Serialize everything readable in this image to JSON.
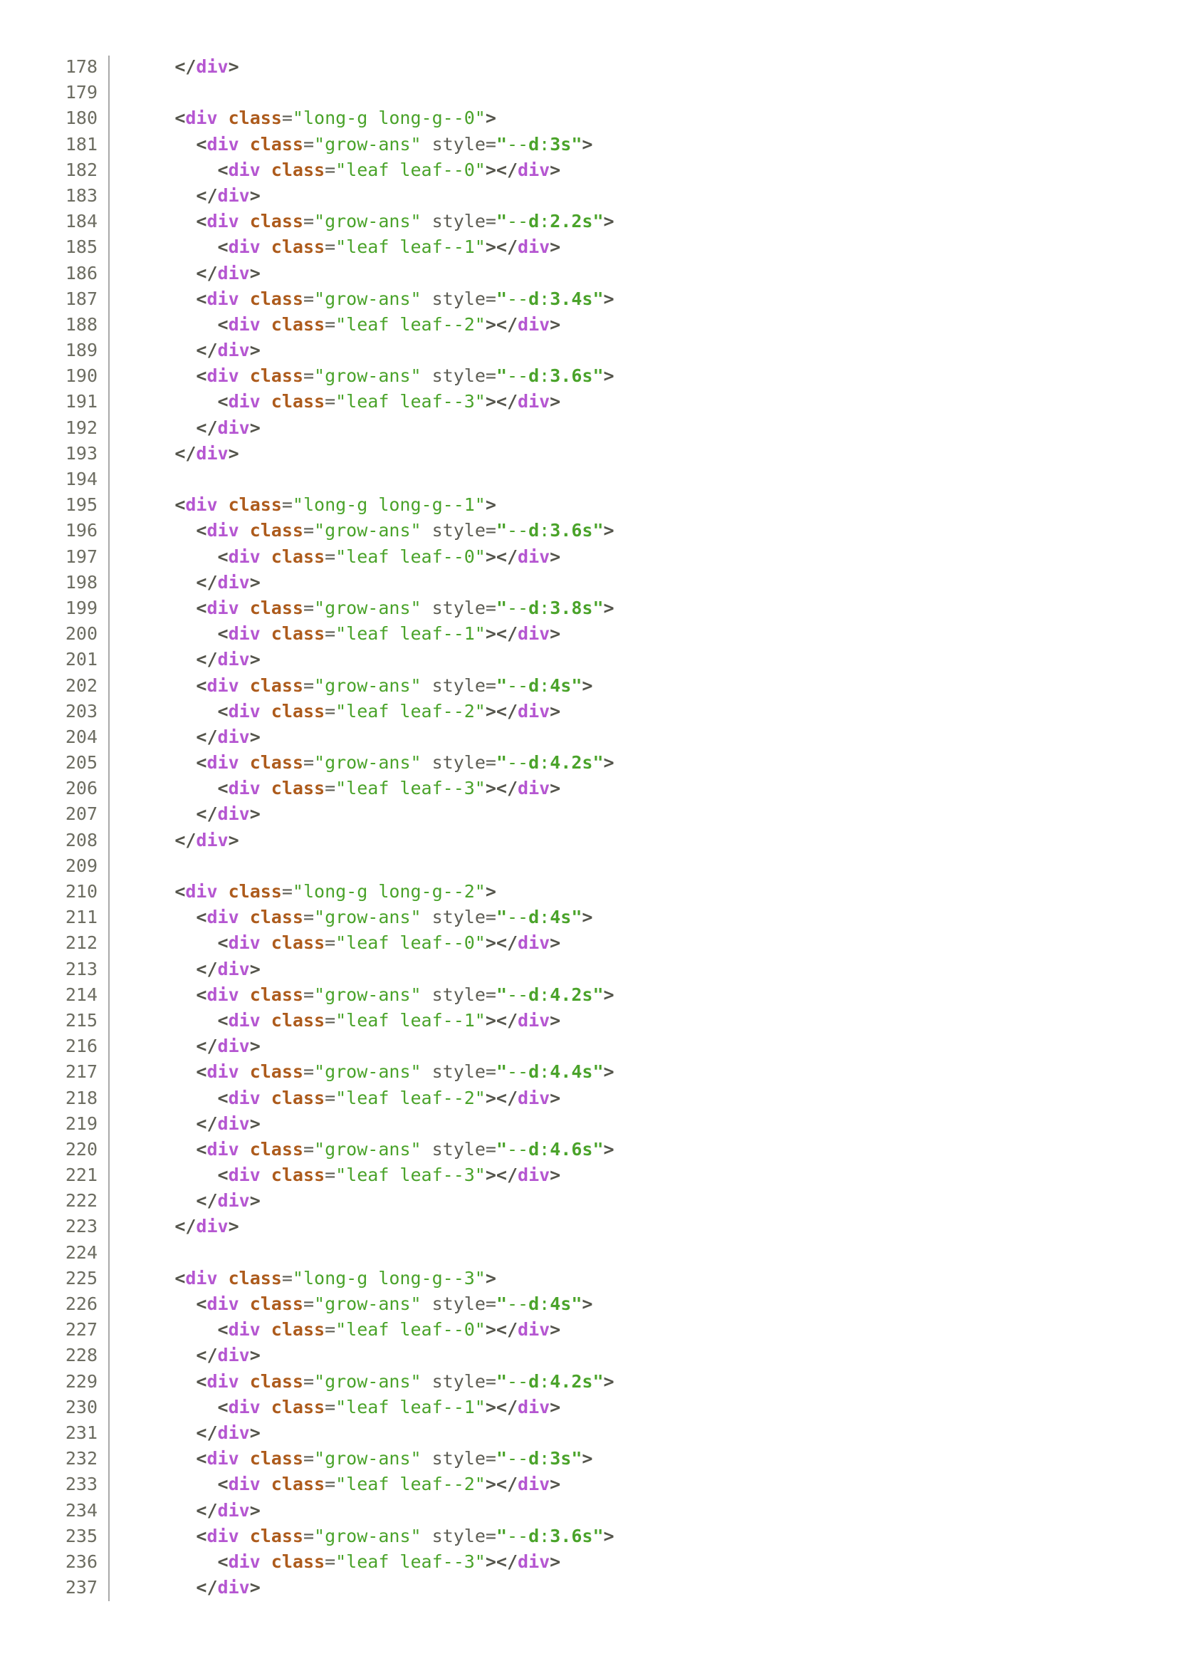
{
  "colors": {
    "background": "#ffffff",
    "tag": "#b556d1",
    "attribute_name": "#ad5b1c",
    "string": "#4aa32a",
    "punctuation": "#54544b",
    "secondary_attribute": "#5e5e55",
    "line_number": "#6d6d62",
    "gutter_border": "#a9a9a9"
  },
  "editor": {
    "first_line_number": 178,
    "last_line_number": 237,
    "lines": [
      {
        "number": 178,
        "code": "      </div>"
      },
      {
        "number": 179,
        "code": ""
      },
      {
        "number": 180,
        "code": "      <div class=\"long-g long-g--0\">"
      },
      {
        "number": 181,
        "code": "        <div class=\"grow-ans\" style=\"--d:3s\">"
      },
      {
        "number": 182,
        "code": "          <div class=\"leaf leaf--0\"></div>"
      },
      {
        "number": 183,
        "code": "        </div>"
      },
      {
        "number": 184,
        "code": "        <div class=\"grow-ans\" style=\"--d:2.2s\">"
      },
      {
        "number": 185,
        "code": "          <div class=\"leaf leaf--1\"></div>"
      },
      {
        "number": 186,
        "code": "        </div>"
      },
      {
        "number": 187,
        "code": "        <div class=\"grow-ans\" style=\"--d:3.4s\">"
      },
      {
        "number": 188,
        "code": "          <div class=\"leaf leaf--2\"></div>"
      },
      {
        "number": 189,
        "code": "        </div>"
      },
      {
        "number": 190,
        "code": "        <div class=\"grow-ans\" style=\"--d:3.6s\">"
      },
      {
        "number": 191,
        "code": "          <div class=\"leaf leaf--3\"></div>"
      },
      {
        "number": 192,
        "code": "        </div>"
      },
      {
        "number": 193,
        "code": "      </div>"
      },
      {
        "number": 194,
        "code": ""
      },
      {
        "number": 195,
        "code": "      <div class=\"long-g long-g--1\">"
      },
      {
        "number": 196,
        "code": "        <div class=\"grow-ans\" style=\"--d:3.6s\">"
      },
      {
        "number": 197,
        "code": "          <div class=\"leaf leaf--0\"></div>"
      },
      {
        "number": 198,
        "code": "        </div>"
      },
      {
        "number": 199,
        "code": "        <div class=\"grow-ans\" style=\"--d:3.8s\">"
      },
      {
        "number": 200,
        "code": "          <div class=\"leaf leaf--1\"></div>"
      },
      {
        "number": 201,
        "code": "        </div>"
      },
      {
        "number": 202,
        "code": "        <div class=\"grow-ans\" style=\"--d:4s\">"
      },
      {
        "number": 203,
        "code": "          <div class=\"leaf leaf--2\"></div>"
      },
      {
        "number": 204,
        "code": "        </div>"
      },
      {
        "number": 205,
        "code": "        <div class=\"grow-ans\" style=\"--d:4.2s\">"
      },
      {
        "number": 206,
        "code": "          <div class=\"leaf leaf--3\"></div>"
      },
      {
        "number": 207,
        "code": "        </div>"
      },
      {
        "number": 208,
        "code": "      </div>"
      },
      {
        "number": 209,
        "code": ""
      },
      {
        "number": 210,
        "code": "      <div class=\"long-g long-g--2\">"
      },
      {
        "number": 211,
        "code": "        <div class=\"grow-ans\" style=\"--d:4s\">"
      },
      {
        "number": 212,
        "code": "          <div class=\"leaf leaf--0\"></div>"
      },
      {
        "number": 213,
        "code": "        </div>"
      },
      {
        "number": 214,
        "code": "        <div class=\"grow-ans\" style=\"--d:4.2s\">"
      },
      {
        "number": 215,
        "code": "          <div class=\"leaf leaf--1\"></div>"
      },
      {
        "number": 216,
        "code": "        </div>"
      },
      {
        "number": 217,
        "code": "        <div class=\"grow-ans\" style=\"--d:4.4s\">"
      },
      {
        "number": 218,
        "code": "          <div class=\"leaf leaf--2\"></div>"
      },
      {
        "number": 219,
        "code": "        </div>"
      },
      {
        "number": 220,
        "code": "        <div class=\"grow-ans\" style=\"--d:4.6s\">"
      },
      {
        "number": 221,
        "code": "          <div class=\"leaf leaf--3\"></div>"
      },
      {
        "number": 222,
        "code": "        </div>"
      },
      {
        "number": 223,
        "code": "      </div>"
      },
      {
        "number": 224,
        "code": ""
      },
      {
        "number": 225,
        "code": "      <div class=\"long-g long-g--3\">"
      },
      {
        "number": 226,
        "code": "        <div class=\"grow-ans\" style=\"--d:4s\">"
      },
      {
        "number": 227,
        "code": "          <div class=\"leaf leaf--0\"></div>"
      },
      {
        "number": 228,
        "code": "        </div>"
      },
      {
        "number": 229,
        "code": "        <div class=\"grow-ans\" style=\"--d:4.2s\">"
      },
      {
        "number": 230,
        "code": "          <div class=\"leaf leaf--1\"></div>"
      },
      {
        "number": 231,
        "code": "        </div>"
      },
      {
        "number": 232,
        "code": "        <div class=\"grow-ans\" style=\"--d:3s\">"
      },
      {
        "number": 233,
        "code": "          <div class=\"leaf leaf--2\"></div>"
      },
      {
        "number": 234,
        "code": "        </div>"
      },
      {
        "number": 235,
        "code": "        <div class=\"grow-ans\" style=\"--d:3.6s\">"
      },
      {
        "number": 236,
        "code": "          <div class=\"leaf leaf--3\"></div>"
      },
      {
        "number": 237,
        "code": "        </div>"
      }
    ]
  }
}
